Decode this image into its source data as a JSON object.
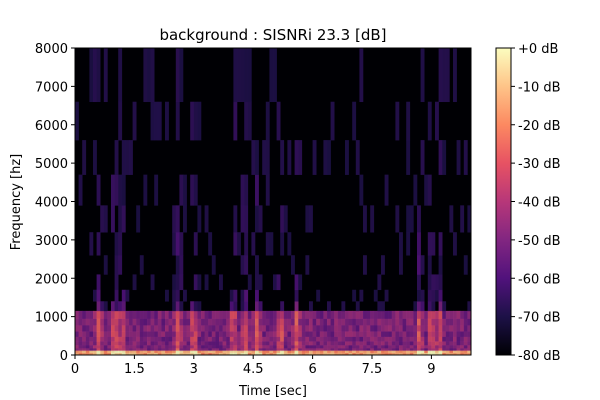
{
  "chart_data": {
    "type": "heatmap",
    "kind": "spectrogram",
    "title": "background : SISNRi 23.3 [dB]",
    "xlabel": "Time [sec]",
    "ylabel": "Frequency [hz]",
    "xlim": [
      0,
      10.0
    ],
    "ylim": [
      0,
      8000
    ],
    "xticks": [
      0,
      1.5,
      3,
      4.5,
      6,
      7.5,
      9
    ],
    "xtick_labels": [
      "0",
      "1.5",
      "3",
      "4.5",
      "6",
      "7.5",
      "9"
    ],
    "yticks": [
      0,
      1000,
      2000,
      3000,
      4000,
      5000,
      6000,
      7000,
      8000
    ],
    "ytick_labels": [
      "0",
      "1000",
      "2000",
      "3000",
      "4000",
      "5000",
      "6000",
      "7000",
      "8000"
    ],
    "colorbar": {
      "range": [
        -80,
        0
      ],
      "unit": "dB",
      "ticks": [
        0,
        -10,
        -20,
        -30,
        -40,
        -50,
        -60,
        -70,
        -80
      ],
      "tick_labels": [
        "+0 dB",
        "-10 dB",
        "-20 dB",
        "-30 dB",
        "-40 dB",
        "-50 dB",
        "-60 dB",
        "-70 dB",
        "-80 dB"
      ],
      "colormap": "magma",
      "colors": [
        "#000004",
        "#1d1147",
        "#51127c",
        "#822681",
        "#b73779",
        "#e75263",
        "#fc8961",
        "#fec488",
        "#fcfdbf"
      ]
    },
    "energy_bands": [
      {
        "freq_range": [
          0,
          150
        ],
        "level_db": -15
      },
      {
        "freq_range": [
          150,
          1200
        ],
        "level_db": -50
      },
      {
        "freq_range": [
          1200,
          8000
        ],
        "level_db": -75
      }
    ],
    "energy_bursts_time": [
      0.6,
      1.0,
      1.2,
      2.6,
      3.0,
      4.0,
      4.3,
      4.6,
      5.2,
      5.6,
      8.7,
      9.0,
      9.2
    ]
  }
}
